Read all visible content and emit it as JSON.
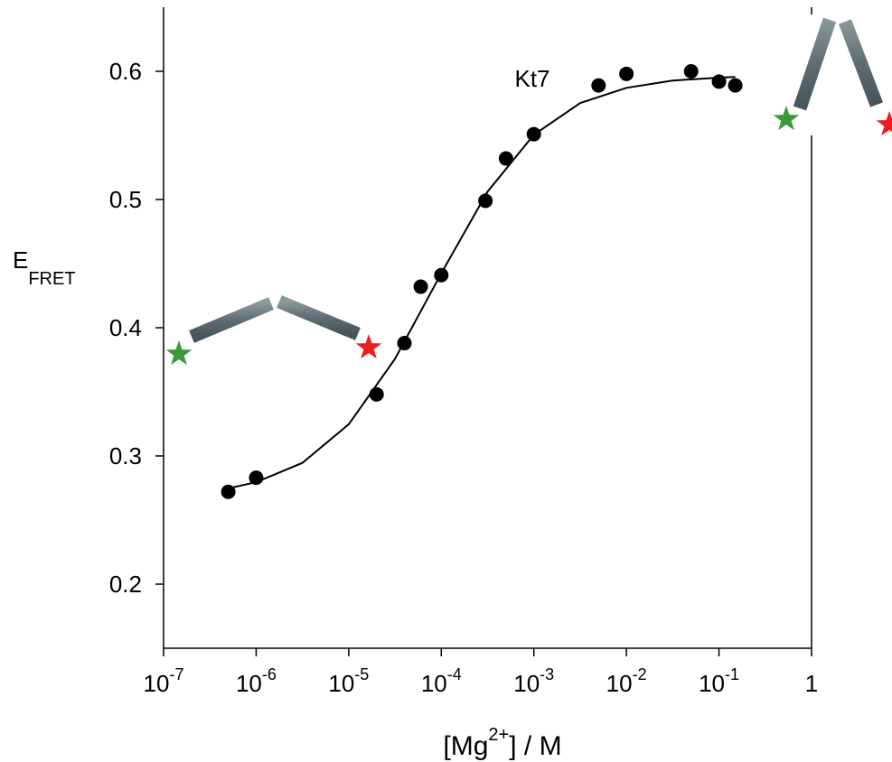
{
  "chart_data": {
    "type": "scatter",
    "x_scale": "log",
    "xlim": [
      1e-07,
      1
    ],
    "ylim": [
      0.15,
      0.65
    ],
    "xticks": [
      {
        "value": 1e-07,
        "label": "10",
        "sup": "-7"
      },
      {
        "value": 1e-06,
        "label": "10",
        "sup": "-6"
      },
      {
        "value": 1e-05,
        "label": "10",
        "sup": "-5"
      },
      {
        "value": 0.0001,
        "label": "10",
        "sup": "-4"
      },
      {
        "value": 0.001,
        "label": "10",
        "sup": "-3"
      },
      {
        "value": 0.01,
        "label": "10",
        "sup": "-2"
      },
      {
        "value": 0.1,
        "label": "10",
        "sup": "-1"
      },
      1
    ],
    "yticks": [
      0.2,
      0.3,
      0.4,
      0.5,
      0.6
    ],
    "x_label": {
      "parts": [
        "[Mg",
        "2+",
        "] / M"
      ]
    },
    "y_label": {
      "text": "E",
      "sub": "FRET"
    },
    "annotation": "Kt7",
    "series": [
      {
        "type": "scatter",
        "color": "#000000",
        "x": [
          5e-07,
          1e-06,
          2e-05,
          4e-05,
          6e-05,
          0.0001,
          0.0003,
          0.0005,
          0.001,
          0.005,
          0.01,
          0.05,
          0.1,
          0.15
        ],
        "values": [
          0.272,
          0.283,
          0.348,
          0.388,
          0.432,
          0.441,
          0.499,
          0.532,
          0.551,
          0.589,
          0.598,
          0.6,
          0.592,
          0.589
        ]
      },
      {
        "type": "line",
        "color": "#000000",
        "x": [
          5e-07,
          1e-06,
          3.16e-06,
          1e-05,
          3.16e-05,
          0.0001,
          0.000316,
          0.001,
          0.00316,
          0.01,
          0.0316,
          0.1,
          0.15
        ],
        "values": [
          0.2747,
          0.2795,
          0.2946,
          0.3247,
          0.3756,
          0.4425,
          0.5062,
          0.5505,
          0.5752,
          0.5871,
          0.5928,
          0.5951,
          0.5956
        ]
      }
    ]
  }
}
